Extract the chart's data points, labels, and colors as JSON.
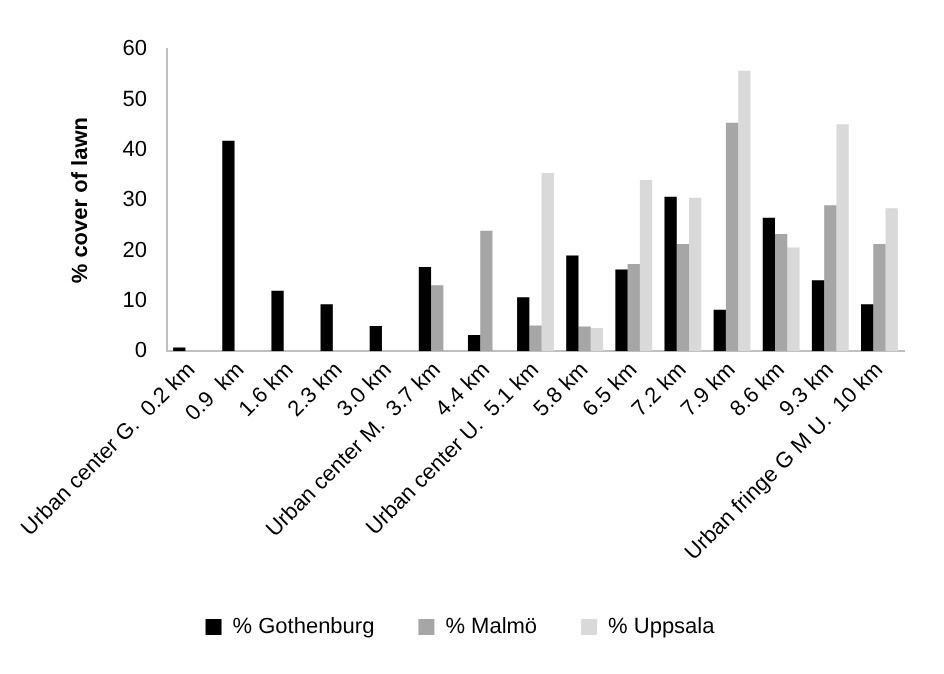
{
  "chart_data": {
    "type": "bar",
    "ylabel": "% cover of lawn",
    "categories": [
      "Urban center G.  0.2 km",
      "0.9  km",
      "1.6 km",
      "2.3 km",
      "3.0 km",
      "Urban center M.  3.7 km",
      "4.4 km",
      "Urban center U.  5.1 km",
      "5.8 km",
      "6.5 km",
      "7.2 km",
      "7.9 km",
      "8.6 km",
      "9.3 km",
      "Urban fringe G M U.  10 km"
    ],
    "series": [
      {
        "name": "% Gothenburg",
        "color": "#000000",
        "values": [
          0.7,
          41.8,
          12.0,
          9.3,
          5.0,
          16.7,
          3.2,
          10.7,
          19.0,
          16.2,
          30.7,
          8.2,
          26.5,
          14.1,
          9.3
        ]
      },
      {
        "name": "% Malmö",
        "color": "#a6a6a6",
        "values": [
          null,
          null,
          null,
          null,
          null,
          13.1,
          23.9,
          5.1,
          4.9,
          17.3,
          21.3,
          45.4,
          23.3,
          29.0,
          21.3
        ]
      },
      {
        "name": "% Uppsala",
        "color": "#d9d9d9",
        "values": [
          null,
          null,
          null,
          null,
          null,
          null,
          null,
          35.4,
          4.6,
          34.0,
          30.5,
          55.7,
          20.6,
          45.1,
          28.4
        ]
      }
    ],
    "ylim": [
      0,
      60
    ],
    "yticks": [
      0,
      10,
      20,
      30,
      40,
      50,
      60
    ],
    "grid": false,
    "legend": "bottom"
  }
}
